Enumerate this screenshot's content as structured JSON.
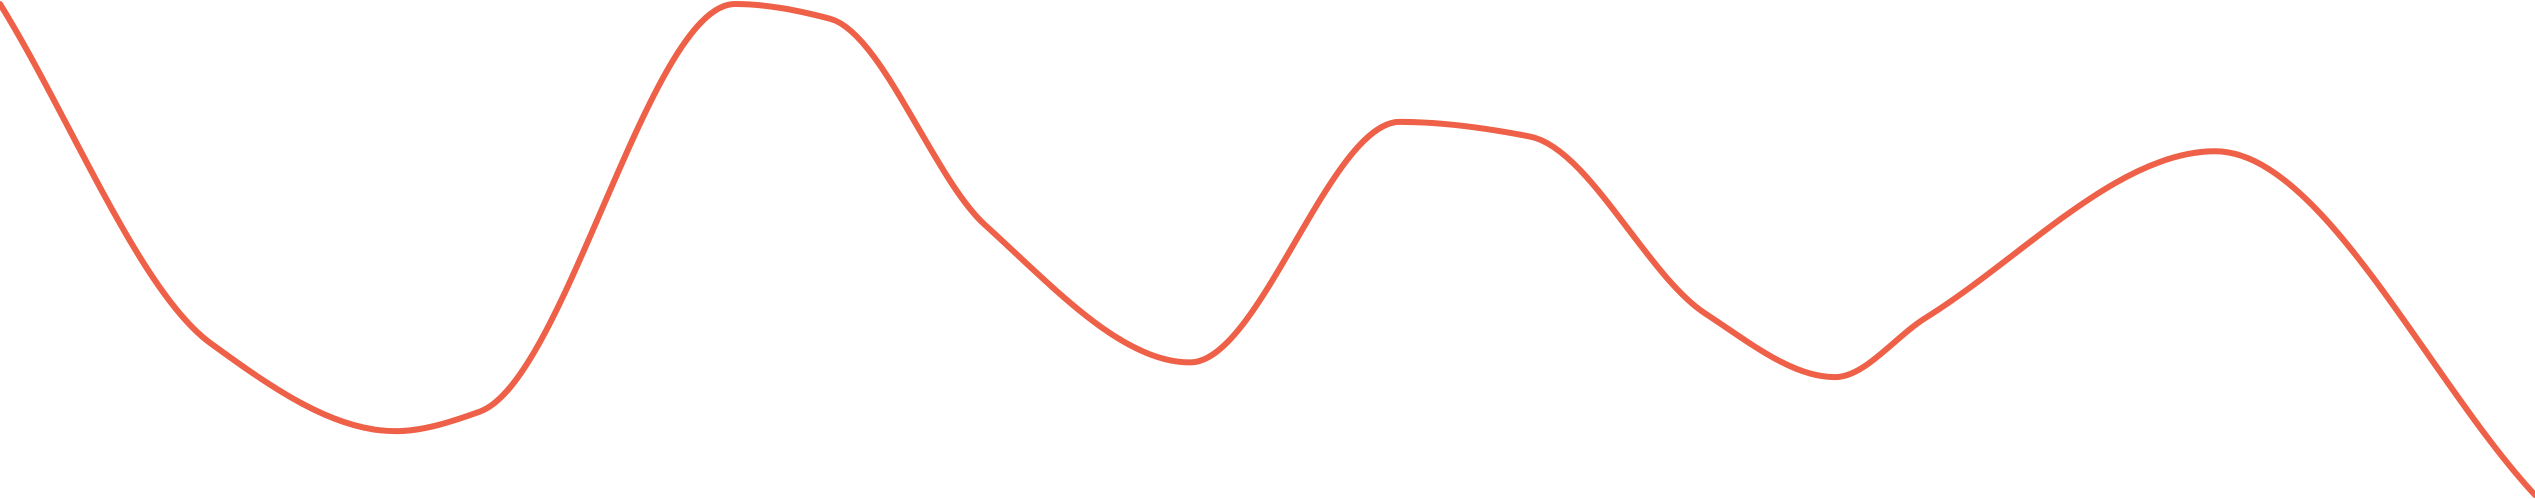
{
  "chart_data": {
    "type": "line",
    "grid": false,
    "legend": "none",
    "curve": "smooth",
    "series": [
      {
        "color": "#EE6148",
        "points": [
          [
            0,
            100
          ],
          [
            210,
            31
          ],
          [
            395,
            13
          ],
          [
            480,
            17
          ],
          [
            735,
            100
          ],
          [
            830,
            97
          ],
          [
            985,
            55
          ],
          [
            1190,
            27
          ],
          [
            1400,
            76
          ],
          [
            1530,
            73
          ],
          [
            1705,
            37
          ],
          [
            1835,
            24
          ],
          [
            1925,
            36
          ],
          [
            2215,
            70
          ],
          [
            2535,
            0
          ]
        ]
      }
    ],
    "xlim": [
      0,
      2535
    ],
    "ylim": [
      0,
      100
    ]
  }
}
